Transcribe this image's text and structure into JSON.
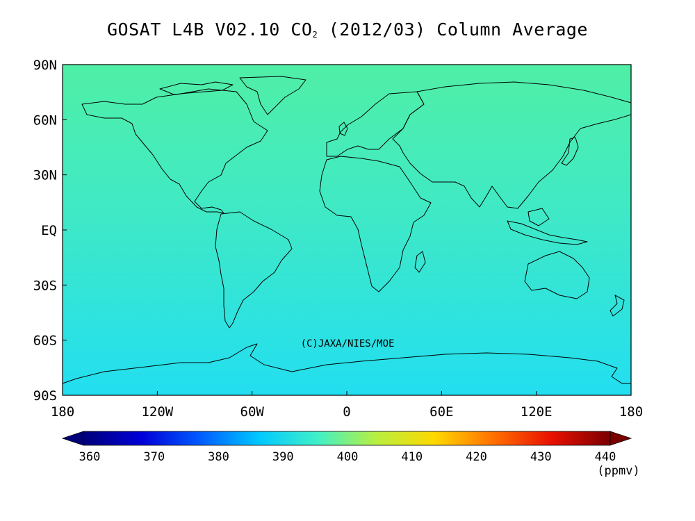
{
  "title_parts": {
    "before": "GOSAT L4B V02.10 CO",
    "subscript": "2",
    "after": " (2012/03) Column Average"
  },
  "map": {
    "lat_ticks": [
      "90N",
      "60N",
      "30N",
      "EQ",
      "30S",
      "60S",
      "90S"
    ],
    "lon_ticks": [
      "180",
      "120W",
      "60W",
      "0",
      "60E",
      "120E",
      "180"
    ],
    "credit": "(C)JAXA/NIES/MOE",
    "field_colors": {
      "north": "#50efa6",
      "middle": "#3fe9c6",
      "south": "#22def0"
    }
  },
  "colorbar": {
    "ticks": [
      "360",
      "370",
      "380",
      "390",
      "400",
      "410",
      "420",
      "430",
      "440"
    ],
    "unit": "(ppmv)",
    "stops": [
      "#00007a",
      "#0000d8",
      "#005cff",
      "#00c8ff",
      "#40f0c8",
      "#b8f040",
      "#ffd800",
      "#ff7000",
      "#e81000",
      "#7a0000"
    ]
  }
}
